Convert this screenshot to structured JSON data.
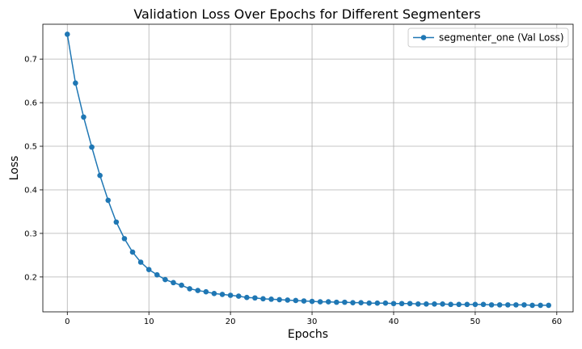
{
  "chart_data": {
    "type": "line",
    "title": "Validation Loss Over Epochs for Different Segmenters",
    "xlabel": "Epochs",
    "ylabel": "Loss",
    "xlim": [
      -3,
      62
    ],
    "ylim": [
      0.12,
      0.78
    ],
    "xticks": [
      0,
      10,
      20,
      30,
      40,
      50,
      60
    ],
    "yticks": [
      0.2,
      0.3,
      0.4,
      0.5,
      0.6,
      0.7
    ],
    "ytick_labels": [
      "0.2",
      "0.3",
      "0.4",
      "0.5",
      "0.6",
      "0.7"
    ],
    "grid": true,
    "legend_position": "top-right",
    "series": [
      {
        "name": "segmenter_one (Val Loss)",
        "color": "#1f77b4",
        "marker": "circle",
        "x": [
          0,
          1,
          2,
          3,
          4,
          5,
          6,
          7,
          8,
          9,
          10,
          11,
          12,
          13,
          14,
          15,
          16,
          17,
          18,
          19,
          20,
          21,
          22,
          23,
          24,
          25,
          26,
          27,
          28,
          29,
          30,
          31,
          32,
          33,
          34,
          35,
          36,
          37,
          38,
          39,
          40,
          41,
          42,
          43,
          44,
          45,
          46,
          47,
          48,
          49,
          50,
          51,
          52,
          53,
          54,
          55,
          56,
          57,
          58,
          59
        ],
        "y": [
          0.757,
          0.645,
          0.567,
          0.498,
          0.433,
          0.376,
          0.326,
          0.288,
          0.257,
          0.234,
          0.217,
          0.205,
          0.194,
          0.187,
          0.181,
          0.173,
          0.169,
          0.166,
          0.162,
          0.16,
          0.158,
          0.156,
          0.153,
          0.152,
          0.15,
          0.149,
          0.148,
          0.147,
          0.146,
          0.145,
          0.144,
          0.143,
          0.143,
          0.142,
          0.142,
          0.141,
          0.141,
          0.14,
          0.14,
          0.14,
          0.139,
          0.139,
          0.139,
          0.138,
          0.138,
          0.138,
          0.138,
          0.137,
          0.137,
          0.137,
          0.137,
          0.137,
          0.136,
          0.136,
          0.136,
          0.136,
          0.136,
          0.135,
          0.135,
          0.135
        ]
      }
    ]
  }
}
